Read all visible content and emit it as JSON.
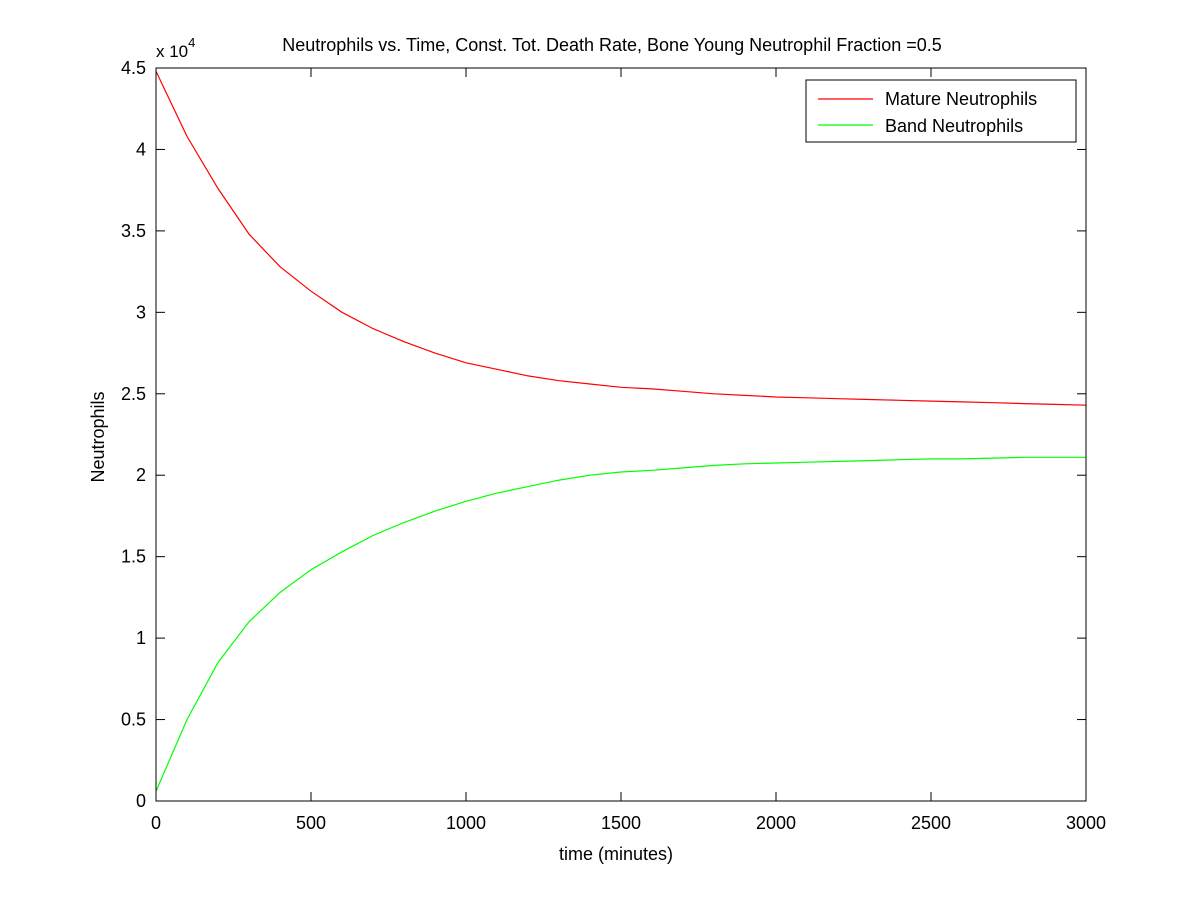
{
  "chart_data": {
    "type": "line",
    "title": "Neutrophils vs. Time, Const. Tot. Death Rate, Bone Young Neutrophil Fraction =0.5",
    "xlabel": "time (minutes)",
    "ylabel": "Neutrophils",
    "y_exponent_base": "x 10",
    "y_exponent_power": "4",
    "xlim": [
      0,
      3000
    ],
    "ylim": [
      0,
      4.5
    ],
    "xticks": [
      "0",
      "500",
      "1000",
      "1500",
      "2000",
      "2500",
      "3000"
    ],
    "yticks": [
      "0",
      "0.5",
      "1",
      "1.5",
      "2",
      "2.5",
      "3",
      "3.5",
      "4",
      "4.5"
    ],
    "grid": false,
    "legend_position": "top-right",
    "x": [
      0,
      100,
      200,
      300,
      400,
      500,
      600,
      700,
      800,
      900,
      1000,
      1100,
      1200,
      1300,
      1400,
      1500,
      1600,
      1700,
      1800,
      1900,
      2000,
      2100,
      2200,
      2300,
      2400,
      2500,
      2600,
      2700,
      2800,
      2900,
      3000
    ],
    "series": [
      {
        "name": "Mature Neutrophils",
        "color": "#ff0000",
        "values": [
          4.48,
          4.08,
          3.76,
          3.48,
          3.28,
          3.13,
          3.0,
          2.9,
          2.82,
          2.75,
          2.69,
          2.65,
          2.61,
          2.58,
          2.56,
          2.54,
          2.53,
          2.515,
          2.5,
          2.49,
          2.48,
          2.475,
          2.47,
          2.465,
          2.46,
          2.455,
          2.45,
          2.445,
          2.44,
          2.435,
          2.43
        ]
      },
      {
        "name": "Band Neutrophils",
        "color": "#00ff00",
        "values": [
          0.06,
          0.5,
          0.85,
          1.1,
          1.28,
          1.42,
          1.53,
          1.63,
          1.71,
          1.78,
          1.84,
          1.89,
          1.93,
          1.97,
          2.0,
          2.02,
          2.03,
          2.045,
          2.06,
          2.07,
          2.075,
          2.08,
          2.085,
          2.09,
          2.095,
          2.1,
          2.1,
          2.105,
          2.11,
          2.11,
          2.11
        ]
      }
    ]
  }
}
